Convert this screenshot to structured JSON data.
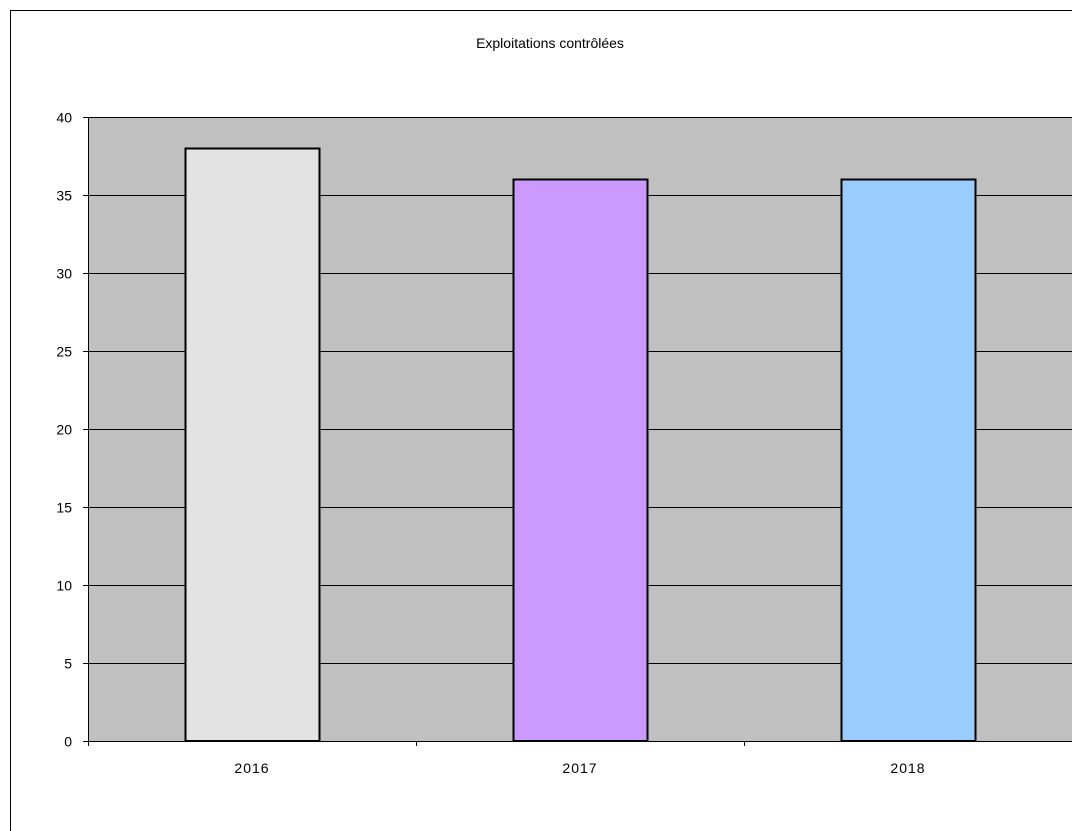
{
  "chart_data": {
    "type": "bar",
    "title": "Exploitations contrôlées",
    "xlabel": "",
    "ylabel": "",
    "categories": [
      "2016",
      "2017",
      "2018"
    ],
    "values": [
      38,
      36,
      36
    ],
    "bar_colors": [
      "#e3e3e3",
      "#cc99ff",
      "#99ccff"
    ],
    "ylim": [
      0,
      40
    ],
    "yticks": [
      0,
      5,
      10,
      15,
      20,
      25,
      30,
      35,
      40
    ],
    "grid": true,
    "legend": "none",
    "plot_background": "#c0c0c0"
  }
}
